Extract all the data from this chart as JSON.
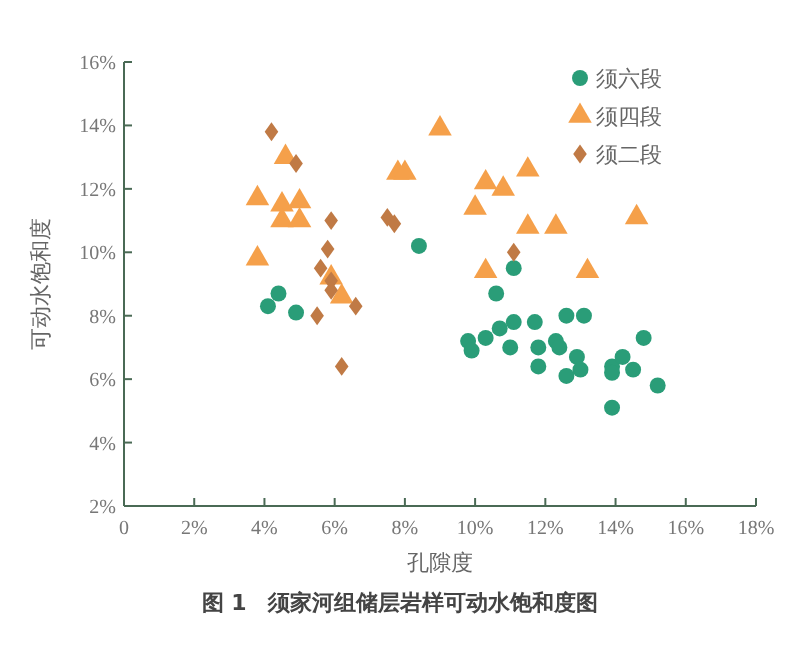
{
  "chart_data": {
    "type": "scatter",
    "title": "图 1　须家河组储层岩样可动水饱和度图",
    "xlabel": "孔隙度",
    "ylabel": "可动水饱和度",
    "xlim": [
      0,
      18
    ],
    "ylim": [
      2,
      16
    ],
    "xticks": [
      {
        "value": 0,
        "label": "0"
      },
      {
        "value": 2,
        "label": "2%"
      },
      {
        "value": 4,
        "label": "4%"
      },
      {
        "value": 6,
        "label": "6%"
      },
      {
        "value": 8,
        "label": "8%"
      },
      {
        "value": 10,
        "label": "10%"
      },
      {
        "value": 12,
        "label": "12%"
      },
      {
        "value": 14,
        "label": "14%"
      },
      {
        "value": 16,
        "label": "16%"
      },
      {
        "value": 18,
        "label": "18%"
      }
    ],
    "yticks": [
      {
        "value": 2,
        "label": "2%"
      },
      {
        "value": 4,
        "label": "4%"
      },
      {
        "value": 6,
        "label": "6%"
      },
      {
        "value": 8,
        "label": "8%"
      },
      {
        "value": 10,
        "label": "10%"
      },
      {
        "value": 12,
        "label": "12%"
      },
      {
        "value": 14,
        "label": "14%"
      },
      {
        "value": 16,
        "label": "16%"
      }
    ],
    "grid": false,
    "legend": "top right",
    "series": [
      {
        "name": "须六段",
        "color": "#2a9d78",
        "marker": "circle",
        "x": [
          4.1,
          4.4,
          4.9,
          8.4,
          11.1,
          10.6,
          9.8,
          9.9,
          10.3,
          10.7,
          11.1,
          11.0,
          11.7,
          11.8,
          11.8,
          12.6,
          13.1,
          12.3,
          12.4,
          12.9,
          13.0,
          12.6,
          13.9,
          13.9,
          14.2,
          14.5,
          14.8,
          15.2,
          13.9
        ],
        "values": [
          8.3,
          8.7,
          8.1,
          10.2,
          9.5,
          8.7,
          7.2,
          6.9,
          7.3,
          7.6,
          7.8,
          7.0,
          7.8,
          7.0,
          6.4,
          8.0,
          8.0,
          7.2,
          7.0,
          6.7,
          6.3,
          6.1,
          6.4,
          6.2,
          6.7,
          6.3,
          7.3,
          5.8,
          5.1
        ]
      },
      {
        "name": "须四段",
        "color": "#f5a04a",
        "marker": "triangle",
        "x": [
          3.8,
          3.8,
          4.6,
          4.5,
          5.0,
          4.5,
          5.0,
          5.9,
          6.2,
          7.8,
          8.0,
          9.0,
          10.3,
          10.8,
          10.0,
          11.5,
          11.5,
          12.3,
          14.6,
          10.3,
          13.2
        ],
        "values": [
          11.7,
          9.8,
          13.0,
          11.5,
          11.6,
          11.0,
          11.0,
          9.2,
          8.6,
          12.5,
          12.5,
          13.9,
          12.2,
          12.0,
          11.4,
          12.6,
          10.8,
          10.8,
          11.1,
          9.4,
          9.4
        ]
      },
      {
        "name": "须二段",
        "color": "#c07a45",
        "marker": "diamond",
        "x": [
          4.2,
          4.9,
          5.9,
          5.8,
          5.6,
          5.9,
          5.9,
          5.5,
          6.6,
          6.2,
          7.5,
          7.7,
          11.1
        ],
        "values": [
          13.8,
          12.8,
          11.0,
          10.1,
          9.5,
          9.1,
          8.8,
          8.0,
          8.3,
          6.4,
          11.1,
          10.9,
          10.0
        ]
      }
    ]
  }
}
